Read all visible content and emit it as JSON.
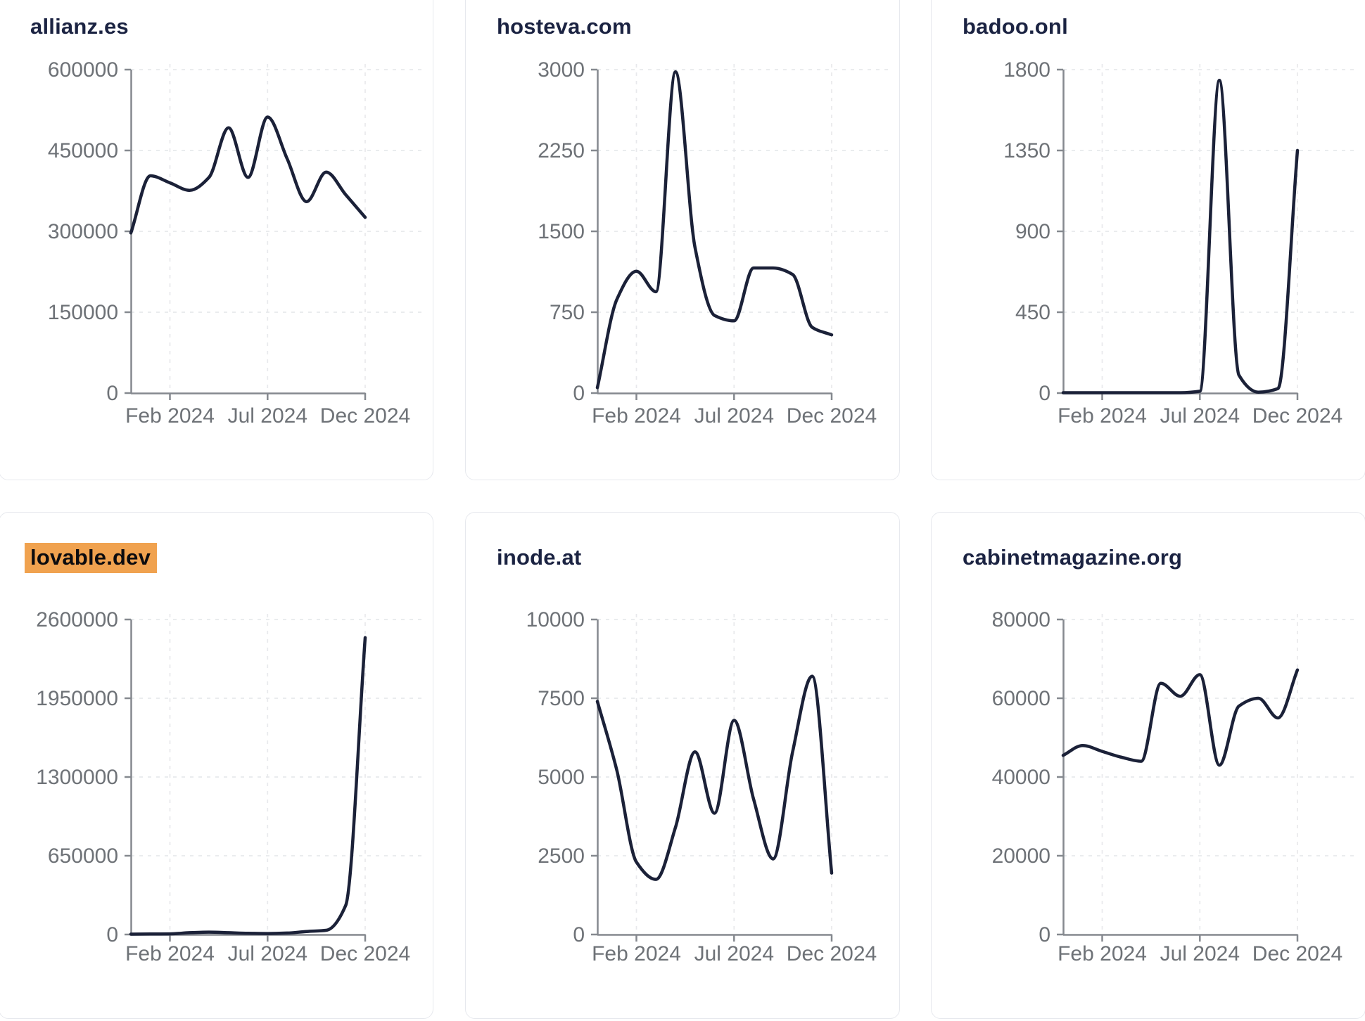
{
  "colors": {
    "background": "#ffffff",
    "card_border": "#e7e9ee",
    "title": "#1b2342",
    "highlight_bg": "#f0a24f",
    "highlight_text": "#0c0c0f",
    "series_line": "#1b2138",
    "axis": "#85898f",
    "tick_label": "#6e7277",
    "grid": "#e8e9ec"
  },
  "chart_data": [
    {
      "type": "line",
      "title": "allianz.es",
      "title_highlighted": false,
      "x": [
        "Dec 2023",
        "Jan 2024",
        "Feb 2024",
        "Mar 2024",
        "Apr 2024",
        "May 2024",
        "Jun 2024",
        "Jul 2024",
        "Aug 2024",
        "Sep 2024",
        "Oct 2024",
        "Nov 2024",
        "Dec 2024"
      ],
      "values": [
        297000,
        403000,
        390000,
        376000,
        400000,
        492000,
        400000,
        512000,
        435000,
        355000,
        410000,
        368000,
        326000
      ],
      "ylim": [
        0,
        600000
      ],
      "yticks": [
        0,
        150000,
        300000,
        450000,
        600000
      ],
      "xticks": [
        "Feb 2024",
        "Jul 2024",
        "Dec 2024"
      ],
      "grid": "dashed",
      "legend_position": "none"
    },
    {
      "type": "line",
      "title": "hosteva.com",
      "title_highlighted": false,
      "x": [
        "Dec 2023",
        "Jan 2024",
        "Feb 2024",
        "Mar 2024",
        "Apr 2024",
        "May 2024",
        "Jun 2024",
        "Jul 2024",
        "Aug 2024",
        "Sep 2024",
        "Oct 2024",
        "Nov 2024",
        "Dec 2024"
      ],
      "values": [
        50,
        870,
        1130,
        940,
        2980,
        1350,
        720,
        670,
        1160,
        1160,
        1100,
        610,
        540
      ],
      "ylim": [
        0,
        3000
      ],
      "yticks": [
        0,
        750,
        1500,
        2250,
        3000
      ],
      "xticks": [
        "Feb 2024",
        "Jul 2024",
        "Dec 2024"
      ],
      "grid": "dashed",
      "legend_position": "none"
    },
    {
      "type": "line",
      "title": "badoo.onl",
      "title_highlighted": false,
      "x": [
        "Dec 2023",
        "Jan 2024",
        "Feb 2024",
        "Mar 2024",
        "Apr 2024",
        "May 2024",
        "Jun 2024",
        "Jul 2024",
        "Aug 2024",
        "Sep 2024",
        "Oct 2024",
        "Nov 2024",
        "Dec 2024"
      ],
      "values": [
        2,
        2,
        2,
        2,
        2,
        2,
        2,
        10,
        1740,
        100,
        5,
        25,
        1350
      ],
      "ylim": [
        0,
        1800
      ],
      "yticks": [
        0,
        450,
        900,
        1350,
        1800
      ],
      "xticks": [
        "Feb 2024",
        "Jul 2024",
        "Dec 2024"
      ],
      "grid": "dashed",
      "legend_position": "none"
    },
    {
      "type": "line",
      "title": "lovable.dev",
      "title_highlighted": true,
      "x": [
        "Dec 2023",
        "Jan 2024",
        "Feb 2024",
        "Mar 2024",
        "Apr 2024",
        "May 2024",
        "Jun 2024",
        "Jul 2024",
        "Aug 2024",
        "Sep 2024",
        "Oct 2024",
        "Nov 2024",
        "Dec 2024"
      ],
      "values": [
        3000,
        4000,
        5000,
        15000,
        20000,
        15000,
        10000,
        8000,
        12000,
        25000,
        35000,
        240000,
        2450000
      ],
      "ylim": [
        0,
        2600000
      ],
      "yticks": [
        0,
        650000,
        1300000,
        1950000,
        2600000
      ],
      "xticks": [
        "Feb 2024",
        "Jul 2024",
        "Dec 2024"
      ],
      "grid": "dashed",
      "legend_position": "none"
    },
    {
      "type": "line",
      "title": "inode.at",
      "title_highlighted": false,
      "x": [
        "Dec 2023",
        "Jan 2024",
        "Feb 2024",
        "Mar 2024",
        "Apr 2024",
        "May 2024",
        "Jun 2024",
        "Jul 2024",
        "Aug 2024",
        "Sep 2024",
        "Oct 2024",
        "Nov 2024",
        "Dec 2024"
      ],
      "values": [
        7400,
        5200,
        2300,
        1750,
        3400,
        5800,
        3850,
        6800,
        4300,
        2400,
        5800,
        8200,
        1950
      ],
      "ylim": [
        0,
        10000
      ],
      "yticks": [
        0,
        2500,
        5000,
        7500,
        10000
      ],
      "xticks": [
        "Feb 2024",
        "Jul 2024",
        "Dec 2024"
      ],
      "grid": "dashed",
      "legend_position": "none"
    },
    {
      "type": "line",
      "title": "cabinetmagazine.org",
      "title_highlighted": false,
      "x": [
        "Dec 2023",
        "Jan 2024",
        "Feb 2024",
        "Mar 2024",
        "Apr 2024",
        "May 2024",
        "Jun 2024",
        "Jul 2024",
        "Aug 2024",
        "Sep 2024",
        "Oct 2024",
        "Nov 2024",
        "Dec 2024"
      ],
      "values": [
        45500,
        48000,
        46500,
        45000,
        44000,
        63800,
        60500,
        66000,
        43000,
        58000,
        60000,
        55000,
        67200
      ],
      "ylim": [
        0,
        80000
      ],
      "yticks": [
        0,
        20000,
        40000,
        60000,
        80000
      ],
      "xticks": [
        "Feb 2024",
        "Jul 2024",
        "Dec 2024"
      ],
      "grid": "dashed",
      "legend_position": "none"
    }
  ]
}
